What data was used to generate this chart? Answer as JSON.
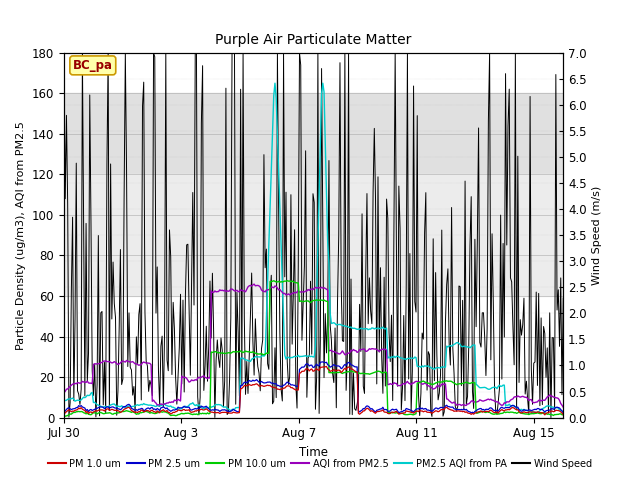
{
  "title": "Purple Air Particulate Matter",
  "xlabel": "Time",
  "ylabel_left": "Particle Density (ug/m3), AQI from PM2.5",
  "ylabel_right": "Wind Speed (m/s)",
  "ylim_left": [
    0,
    180
  ],
  "ylim_right": [
    0,
    7.0
  ],
  "yticks_left": [
    0,
    20,
    40,
    60,
    80,
    100,
    120,
    140,
    160,
    180
  ],
  "yticks_right": [
    0.0,
    0.5,
    1.0,
    1.5,
    2.0,
    2.5,
    3.0,
    3.5,
    4.0,
    4.5,
    5.0,
    5.5,
    6.0,
    6.5,
    7.0
  ],
  "xlim": [
    0,
    17
  ],
  "xtick_positions": [
    0,
    4,
    8,
    12,
    16
  ],
  "xtick_labels": [
    "Jul 30",
    "Aug 3",
    "Aug 7",
    "Aug 11",
    "Aug 15"
  ],
  "annotation_text": "BC_pa",
  "colors": {
    "PM1": "#cc0000",
    "PM25": "#0000cc",
    "PM10": "#00cc00",
    "AQI_PM25": "#9900bb",
    "PM25_AQI_PA": "#00cccc",
    "WindSpeed": "#000000",
    "band_upper": "#e0e0e0",
    "band_lower": "#ececec"
  },
  "legend_entries": [
    {
      "label": "PM 1.0 um",
      "color": "#cc0000"
    },
    {
      "label": "PM 2.5 um",
      "color": "#0000cc"
    },
    {
      "label": "PM 10.0 um",
      "color": "#00cc00"
    },
    {
      "label": "AQI from PM2.5",
      "color": "#9900bb"
    },
    {
      "label": "PM2.5 AQI from PA",
      "color": "#00cccc"
    },
    {
      "label": "Wind Speed",
      "color": "#000000"
    }
  ],
  "figsize": [
    6.4,
    4.8
  ],
  "dpi": 100
}
